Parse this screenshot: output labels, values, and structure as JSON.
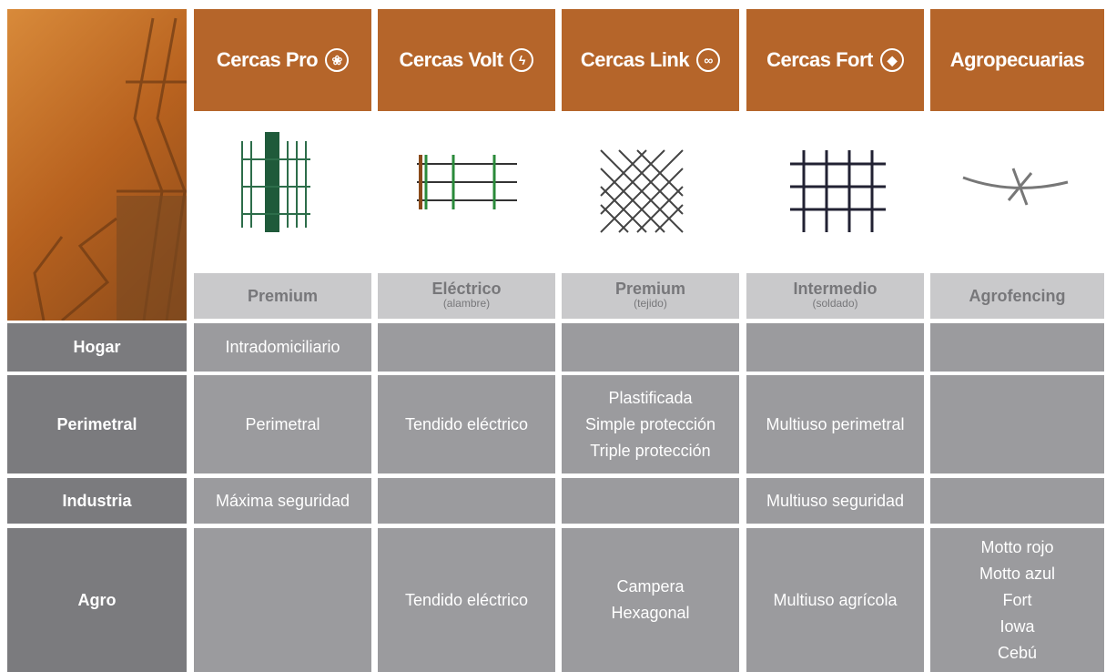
{
  "columns": [
    {
      "title": "Cercas Pro",
      "subtitle": {
        "main": "Premium"
      }
    },
    {
      "title": "Cercas Volt",
      "subtitle": {
        "main": "Eléctrico",
        "note": "(alambre)"
      }
    },
    {
      "title": "Cercas Link",
      "subtitle": {
        "main": "Premium",
        "note": "(tejido)"
      }
    },
    {
      "title": "Cercas Fort",
      "subtitle": {
        "main": "Intermedio",
        "note": "(soldado)"
      }
    },
    {
      "title": "Agropecuarias",
      "subtitle": {
        "main": "Agrofencing"
      }
    }
  ],
  "rows": [
    {
      "label": "Hogar",
      "cells": [
        [
          "Intradomiciliario"
        ],
        [],
        [],
        [],
        []
      ]
    },
    {
      "label": "Perimetral",
      "cells": [
        [
          "Perimetral"
        ],
        [
          "Tendido eléctrico"
        ],
        [
          "Plastificada",
          "Simple protección",
          "Triple protección"
        ],
        [
          "Multiuso perimetral"
        ],
        []
      ]
    },
    {
      "label": "Industria",
      "cells": [
        [
          "Máxima seguridad"
        ],
        [],
        [],
        [
          "Multiuso seguridad"
        ],
        []
      ]
    },
    {
      "label": "Agro",
      "cells": [
        [],
        [
          "Tendido eléctrico"
        ],
        [
          "Campera",
          "Hexagonal"
        ],
        [
          "Multiuso agrícola"
        ],
        [
          "Motto rojo",
          "Motto azul",
          "Fort",
          "Iowa",
          "Cebú"
        ]
      ]
    }
  ]
}
